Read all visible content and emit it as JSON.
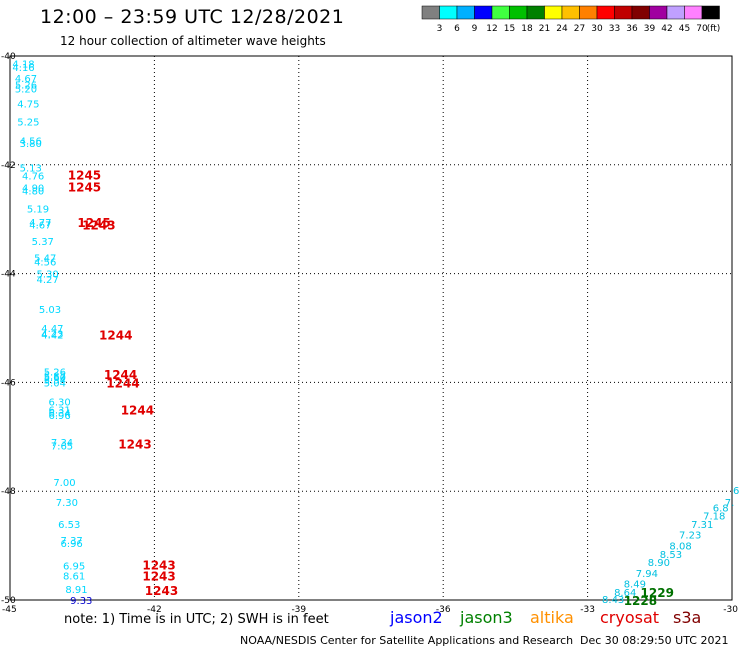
{
  "header": {
    "title": "12:00 – 23:59 UTC 12/28/2021",
    "subtitle": "12 hour collection of altimeter wave heights"
  },
  "legend": {
    "labels": [
      "3",
      "6",
      "9",
      "12",
      "15",
      "18",
      "21",
      "24",
      "27",
      "30",
      "33",
      "36",
      "39",
      "42",
      "45",
      "70",
      "(ft)"
    ],
    "colors": [
      "#808080",
      "#00ffff",
      "#00b0ff",
      "#0000ff",
      "#40ff40",
      "#00c000",
      "#008000",
      "#ffff00",
      "#ffc000",
      "#ff8000",
      "#ff0000",
      "#c00000",
      "#800000",
      "#a000a0",
      "#c0a0ff",
      "#ff80ff",
      "#000000"
    ]
  },
  "axes": {
    "lat_labels": [
      "-40",
      "-42",
      "-44",
      "-46",
      "-48",
      "-50"
    ],
    "lon_labels": [
      "-45",
      "-42",
      "-39",
      "-36",
      "-33",
      "-30"
    ]
  },
  "chart_data": {
    "type": "scatter",
    "lon_range": [
      -45,
      -30
    ],
    "lat_range": [
      -50,
      -40
    ],
    "tracks": [
      {
        "color": "#00d8ff",
        "points": [
          {
            "lon": -44.95,
            "lat": -40.14,
            "v": "4.18"
          },
          {
            "lon": -44.95,
            "lat": -40.2,
            "v": "4.16"
          },
          {
            "lon": -44.9,
            "lat": -40.4,
            "v": "4.67"
          },
          {
            "lon": -44.9,
            "lat": -40.52,
            "v": "5.26"
          },
          {
            "lon": -44.9,
            "lat": -40.6,
            "v": "5.20"
          },
          {
            "lon": -44.85,
            "lat": -40.87,
            "v": "4.75"
          },
          {
            "lon": -44.85,
            "lat": -41.2,
            "v": "5.25"
          },
          {
            "lon": -44.8,
            "lat": -41.55,
            "v": "4.56"
          },
          {
            "lon": -44.8,
            "lat": -41.6,
            "v": "3.80"
          },
          {
            "lon": -44.8,
            "lat": -42.05,
            "v": "5.13"
          },
          {
            "lon": -44.75,
            "lat": -42.2,
            "v": "4.76"
          },
          {
            "lon": -44.75,
            "lat": -42.42,
            "v": "4.90"
          },
          {
            "lon": -44.75,
            "lat": -42.47,
            "v": "4.80"
          },
          {
            "lon": -44.65,
            "lat": -42.8,
            "v": "5.19"
          },
          {
            "lon": -44.6,
            "lat": -43.05,
            "v": "4.77"
          },
          {
            "lon": -44.6,
            "lat": -43.1,
            "v": "4.67"
          },
          {
            "lon": -44.55,
            "lat": -43.4,
            "v": "5.37"
          },
          {
            "lon": -44.5,
            "lat": -43.7,
            "v": "5.47"
          },
          {
            "lon": -44.5,
            "lat": -43.78,
            "v": "4.56"
          },
          {
            "lon": -44.45,
            "lat": -44.0,
            "v": "5.30"
          },
          {
            "lon": -44.45,
            "lat": -44.1,
            "v": "4.27"
          },
          {
            "lon": -44.4,
            "lat": -44.65,
            "v": "5.03"
          },
          {
            "lon": -44.35,
            "lat": -45.0,
            "v": "4.47"
          },
          {
            "lon": -44.35,
            "lat": -45.1,
            "v": "4.23"
          },
          {
            "lon": -44.35,
            "lat": -45.12,
            "v": "4.42"
          },
          {
            "lon": -44.3,
            "lat": -45.8,
            "v": "5.26"
          },
          {
            "lon": -44.3,
            "lat": -45.87,
            "v": "5.82"
          },
          {
            "lon": -44.3,
            "lat": -45.9,
            "v": "5.60"
          },
          {
            "lon": -44.3,
            "lat": -45.95,
            "v": "5.54"
          },
          {
            "lon": -44.3,
            "lat": -46.0,
            "v": "5.04"
          },
          {
            "lon": -44.2,
            "lat": -46.35,
            "v": "6.30"
          },
          {
            "lon": -44.2,
            "lat": -46.5,
            "v": "6.31"
          },
          {
            "lon": -44.2,
            "lat": -46.55,
            "v": "6.34"
          },
          {
            "lon": -44.2,
            "lat": -46.6,
            "v": "6.96"
          },
          {
            "lon": -44.15,
            "lat": -47.1,
            "v": "7.34"
          },
          {
            "lon": -44.15,
            "lat": -47.16,
            "v": "7.65"
          },
          {
            "lon": -44.1,
            "lat": -47.83,
            "v": "7.00"
          },
          {
            "lon": -44.05,
            "lat": -48.2,
            "v": "7.30"
          },
          {
            "lon": -44.0,
            "lat": -48.6,
            "v": "6.53"
          },
          {
            "lon": -43.95,
            "lat": -48.9,
            "v": "7.37"
          },
          {
            "lon": -43.95,
            "lat": -48.95,
            "v": "6.96"
          },
          {
            "lon": -43.9,
            "lat": -49.37,
            "v": "6.95"
          },
          {
            "lon": -43.9,
            "lat": -49.55,
            "v": "8.61"
          },
          {
            "lon": -43.85,
            "lat": -49.8,
            "v": "8.91"
          }
        ]
      },
      {
        "color": "#0000cc",
        "points": [
          {
            "lon": -43.75,
            "lat": -50.0,
            "v": "9.33"
          }
        ]
      },
      {
        "color": "#00c0e0",
        "points": [
          {
            "lon": -29.98,
            "lat": -47.98,
            "v": "6"
          },
          {
            "lon": -30.15,
            "lat": -48.2,
            "v": "7."
          },
          {
            "lon": -30.4,
            "lat": -48.3,
            "v": "6.8"
          },
          {
            "lon": -30.6,
            "lat": -48.45,
            "v": "7.18"
          },
          {
            "lon": -30.85,
            "lat": -48.6,
            "v": "7.31"
          },
          {
            "lon": -31.1,
            "lat": -48.8,
            "v": "7.23"
          },
          {
            "lon": -31.3,
            "lat": -49.0,
            "v": "8.08"
          },
          {
            "lon": -31.5,
            "lat": -49.15,
            "v": "8.53"
          },
          {
            "lon": -31.75,
            "lat": -49.3,
            "v": "8.90"
          },
          {
            "lon": -32.0,
            "lat": -49.5,
            "v": "7.94"
          },
          {
            "lon": -32.25,
            "lat": -49.7,
            "v": "8.49"
          },
          {
            "lon": -32.45,
            "lat": -49.85,
            "v": "8.64"
          },
          {
            "lon": -32.7,
            "lat": -49.98,
            "v": "8.43"
          }
        ]
      }
    ],
    "passes": [
      {
        "satellite": "cryosat",
        "color": "#e00000",
        "time": "1245",
        "lon": -43.8,
        "lat": -42.18
      },
      {
        "satellite": "cryosat",
        "color": "#e00000",
        "time": "1245",
        "lon": -43.8,
        "lat": -42.4
      },
      {
        "satellite": "cryosat",
        "color": "#e00000",
        "time": "1245",
        "lon": -43.6,
        "lat": -43.05
      },
      {
        "satellite": "cryosat",
        "color": "#e00000",
        "time": "1243",
        "lon": -43.5,
        "lat": -43.1
      },
      {
        "satellite": "cryosat",
        "color": "#e00000",
        "time": "1244",
        "lon": -43.15,
        "lat": -45.12
      },
      {
        "satellite": "cryosat",
        "color": "#e00000",
        "time": "1244",
        "lon": -43.05,
        "lat": -45.85
      },
      {
        "satellite": "cryosat",
        "color": "#e00000",
        "time": "1244",
        "lon": -43.0,
        "lat": -46.0
      },
      {
        "satellite": "cryosat",
        "color": "#e00000",
        "time": "1244",
        "lon": -42.7,
        "lat": -46.5
      },
      {
        "satellite": "cryosat",
        "color": "#e00000",
        "time": "1243",
        "lon": -42.75,
        "lat": -47.12
      },
      {
        "satellite": "cryosat",
        "color": "#e00000",
        "time": "1243",
        "lon": -42.25,
        "lat": -49.35
      },
      {
        "satellite": "cryosat",
        "color": "#e00000",
        "time": "1243",
        "lon": -42.25,
        "lat": -49.55
      },
      {
        "satellite": "cryosat",
        "color": "#e00000",
        "time": "1243",
        "lon": -42.2,
        "lat": -49.82
      },
      {
        "satellite": "jason3",
        "color": "#007000",
        "time": "1229",
        "lon": -31.9,
        "lat": -49.85
      },
      {
        "satellite": "jason3",
        "color": "#007000",
        "time": "1228",
        "lon": -32.25,
        "lat": -50.0
      }
    ]
  },
  "footer": {
    "note": "note: 1) Time is in UTC; 2) SWH is in feet",
    "satellites": [
      {
        "name": "jason2",
        "color": "#0000ff"
      },
      {
        "name": "jason3",
        "color": "#008000"
      },
      {
        "name": "altika",
        "color": "#ff9000"
      },
      {
        "name": "cryosat",
        "color": "#e00000"
      },
      {
        "name": "s3a",
        "color": "#800000"
      }
    ],
    "credit": "NOAA/NESDIS Center for Satellite Applications and Research",
    "timestamp": "Dec 30 08:29:50 UTC 2021"
  }
}
